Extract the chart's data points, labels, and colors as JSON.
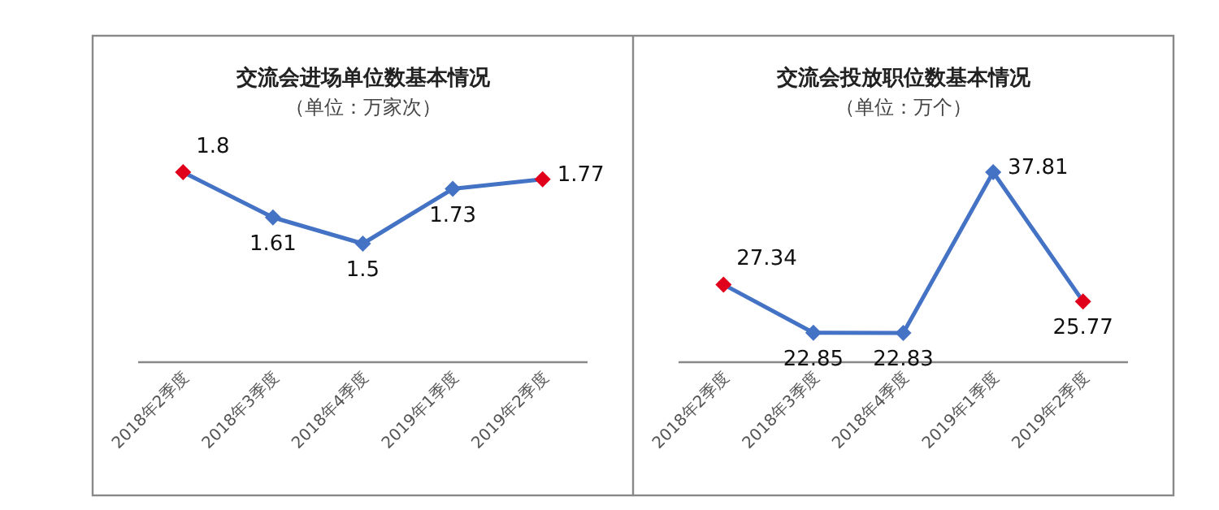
{
  "chart_data": [
    {
      "type": "line",
      "title": "交流会进场单位数基本情况",
      "subtitle": "（单位：万家次）",
      "categories": [
        "2018年2季度",
        "2018年3季度",
        "2018年4季度",
        "2019年1季度",
        "2019年2季度"
      ],
      "data_labels": true,
      "marker": "diamond",
      "series": [
        {
          "color": "#4472c4",
          "colors": [
            "#e0001b",
            "#4472c4",
            "#4472c4",
            "#4472c4",
            "#e0001b"
          ],
          "values": [
            1.8,
            1.61,
            1.5,
            1.73,
            1.77
          ]
        }
      ]
    },
    {
      "type": "line",
      "title": "交流会投放职位数基本情况",
      "subtitle": "（单位：万个）",
      "categories": [
        "2018年2季度",
        "2018年3季度",
        "2018年4季度",
        "2019年1季度",
        "2019年2季度"
      ],
      "data_labels": true,
      "marker": "diamond",
      "series": [
        {
          "color": "#4472c4",
          "colors": [
            "#e0001b",
            "#4472c4",
            "#4472c4",
            "#4472c4",
            "#e0001b"
          ],
          "values": [
            27.34,
            22.85,
            22.83,
            37.81,
            25.77
          ]
        }
      ]
    }
  ]
}
